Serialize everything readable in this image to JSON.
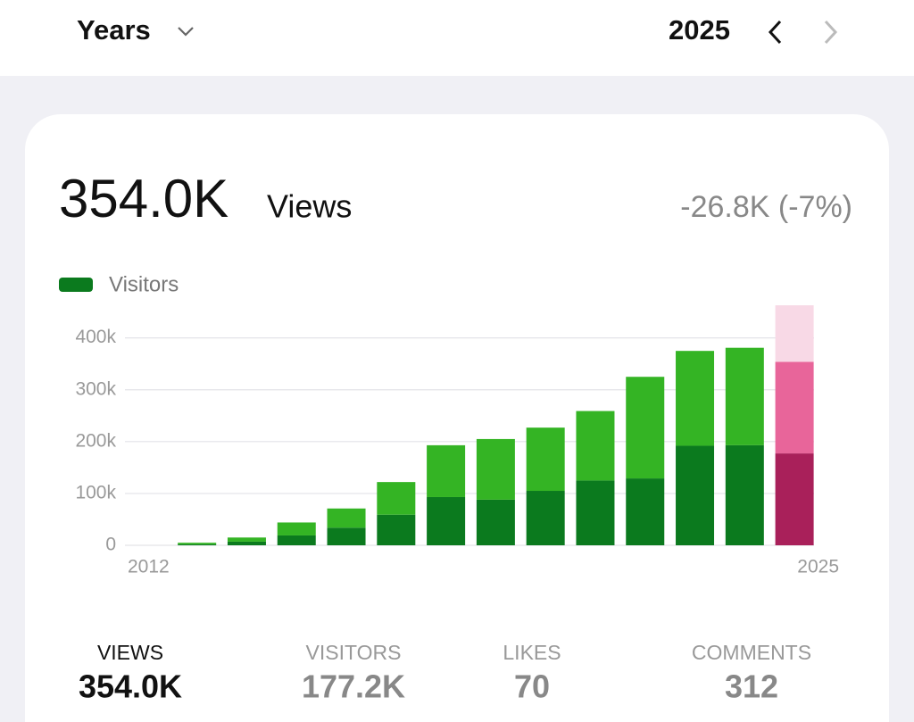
{
  "header": {
    "period": "Years",
    "year": "2025"
  },
  "summary": {
    "value": "354.0K",
    "label": "Views",
    "change": "-26.8K (-7%)"
  },
  "chart_data": {
    "type": "stacked-bar",
    "categories": [
      "2012",
      null,
      null,
      null,
      null,
      null,
      null,
      null,
      null,
      null,
      null,
      null,
      null,
      "2025"
    ],
    "series": [
      {
        "name": "Visitors",
        "color": "#0b7a1e",
        "colors": [
          "#0b7a1e",
          "#0b7a1e",
          "#0b7a1e",
          "#0b7a1e",
          "#0b7a1e",
          "#0b7a1e",
          "#0b7a1e",
          "#0b7a1e",
          "#0b7a1e",
          "#0b7a1e",
          "#0b7a1e",
          "#0b7a1e",
          "#0b7a1e",
          "#a9205a"
        ],
        "values": [
          0,
          2000,
          7000,
          19000,
          34000,
          59000,
          93000,
          88000,
          105000,
          125000,
          129000,
          192000,
          193000,
          177200
        ]
      },
      {
        "colors": [
          "#34b424",
          "#34b424",
          "#34b424",
          "#34b424",
          "#34b424",
          "#34b424",
          "#34b424",
          "#34b424",
          "#34b424",
          "#34b424",
          "#34b424",
          "#34b424",
          "#34b424",
          "#e8659a"
        ],
        "values": [
          0,
          3000,
          8000,
          25000,
          37000,
          63000,
          100000,
          117000,
          122000,
          134000,
          196000,
          183000,
          188000,
          176800
        ]
      },
      {
        "colors": [
          "#f8d9e6",
          "#f8d9e6",
          "#f8d9e6",
          "#f8d9e6",
          "#f8d9e6",
          "#f8d9e6",
          "#f8d9e6",
          "#f8d9e6",
          "#f8d9e6",
          "#f8d9e6",
          "#f8d9e6",
          "#f8d9e6",
          "#f8d9e6",
          "#f8d9e6"
        ],
        "values": [
          null,
          null,
          null,
          null,
          null,
          null,
          null,
          null,
          null,
          null,
          null,
          null,
          null,
          109000
        ]
      }
    ],
    "ylim": [
      0,
      470000
    ],
    "yticks": [
      0,
      {
        "value": 100000,
        "label": "100k"
      },
      {
        "value": 200000,
        "label": "200k"
      },
      {
        "value": 300000,
        "label": "300k"
      },
      {
        "value": 400000,
        "label": "400k"
      }
    ],
    "grid": true
  },
  "stats": [
    {
      "label": "VIEWS",
      "value": "354.0K"
    },
    {
      "label": "VISITORS",
      "value": "177.2K"
    },
    {
      "label": "LIKES",
      "value": "70"
    },
    {
      "label": "COMMENTS",
      "value": "312"
    }
  ]
}
